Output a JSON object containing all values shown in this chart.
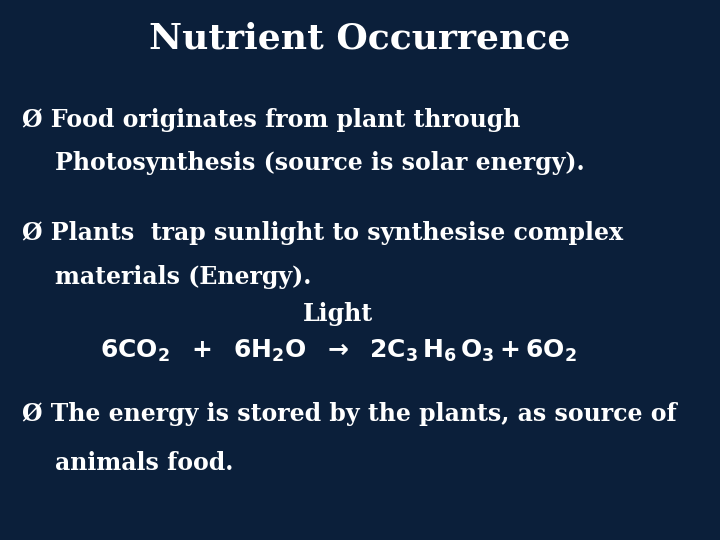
{
  "title": "Nutrient Occurrence",
  "bg_color": "#0b1f3a",
  "text_color": "white",
  "title_fontsize": 26,
  "body_fontsize": 17,
  "eq_fontsize": 18,
  "bullet_char": "Ø",
  "b1l1": " Food originates from plant through",
  "b1l2": "    Photosynthesis (source is solar energy).",
  "b2l1": " Plants  trap sunlight to synthesise complex",
  "b2l2": "    materials (Energy).",
  "light_label": "Light",
  "bullet3_line1": " The energy is stored by the plants, as source of",
  "bullet3_line2": "    animals food."
}
